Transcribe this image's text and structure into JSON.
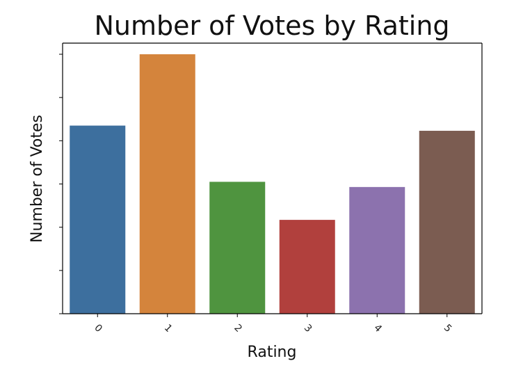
{
  "chart_data": {
    "type": "bar",
    "title": "Number of Votes by Rating",
    "xlabel": "Rating",
    "ylabel": "Number of Votes",
    "categories": [
      "0",
      "1",
      "2",
      "3",
      "4",
      "5"
    ],
    "values": [
      4.35,
      6.0,
      3.05,
      2.17,
      2.93,
      4.23
    ],
    "ylim": [
      0,
      6.0
    ],
    "ytick_values": [
      0,
      1,
      2,
      3,
      4,
      5,
      6
    ],
    "ytick_labels_visible": false,
    "colors": [
      "#3d6f9e",
      "#d4843c",
      "#4f943f",
      "#b1403d",
      "#8c72ae",
      "#7b5c51"
    ],
    "grid": false,
    "xtick_rotation_deg": 45
  }
}
